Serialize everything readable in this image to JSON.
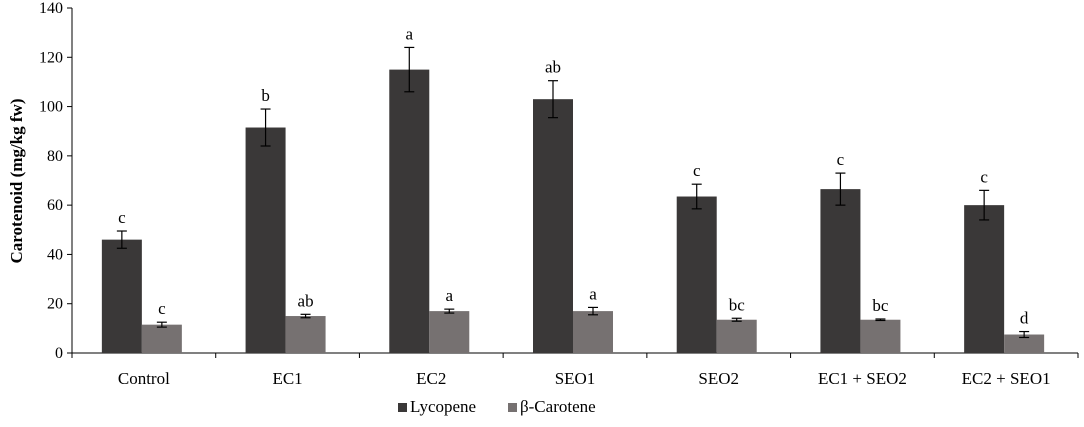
{
  "chart_data": {
    "type": "bar",
    "title": "",
    "xlabel": "",
    "ylabel": "Carotenoid  (mg/kg fw)",
    "ylim": [
      0,
      140
    ],
    "yticks": [
      0,
      20,
      40,
      60,
      80,
      100,
      120,
      140
    ],
    "categories": [
      "Control",
      "EC1",
      "EC2",
      "SEO1",
      "SEO2",
      "EC1 + SEO2",
      "EC2 + SEO1"
    ],
    "series": [
      {
        "name": "Lycopene",
        "color": "#3a3838",
        "values": [
          46,
          91.5,
          115,
          103,
          63.5,
          66.5,
          60
        ],
        "errors": [
          3.5,
          7.5,
          9,
          7.5,
          5,
          6.5,
          6
        ],
        "labels": [
          "c",
          "b",
          "a",
          "ab",
          "c",
          "c",
          "c"
        ]
      },
      {
        "name": "β-Carotene",
        "color": "#767171",
        "values": [
          11.5,
          15,
          17,
          17,
          13.5,
          13.5,
          7.5
        ],
        "errors": [
          1,
          0.7,
          0.8,
          1.5,
          0.6,
          0.3,
          1.2
        ],
        "labels": [
          "c",
          "ab",
          "a",
          "a",
          "bc",
          "bc",
          "d"
        ]
      }
    ],
    "legend_position": "bottom-center",
    "grid": false
  }
}
